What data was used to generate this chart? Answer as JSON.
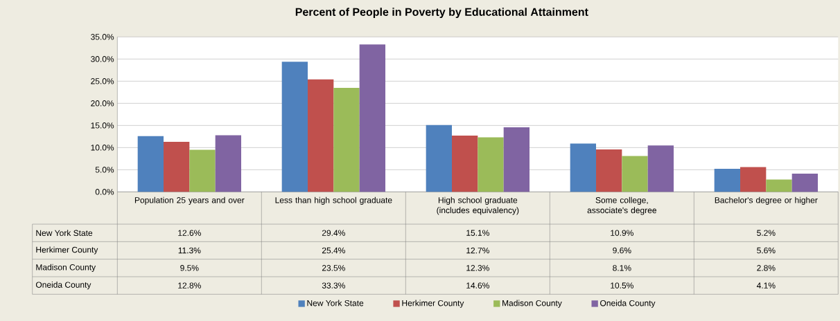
{
  "chart_data": {
    "type": "bar",
    "title": "Percent of People in Poverty by Educational Attainment",
    "categories": [
      "Population 25 years and over",
      "Less than high school graduate",
      "High school graduate (includes equivalency)",
      "Some college, associate's degree",
      "Bachelor's degree or higher"
    ],
    "series": [
      {
        "name": "New York State",
        "color": "#4f81bd",
        "values": [
          12.6,
          29.4,
          15.1,
          10.9,
          5.2
        ],
        "value_labels": [
          "12.6%",
          "29.4%",
          "15.1%",
          "10.9%",
          "5.2%"
        ]
      },
      {
        "name": "Herkimer County",
        "color": "#c0504d",
        "values": [
          11.3,
          25.4,
          12.7,
          9.6,
          5.6
        ],
        "value_labels": [
          "11.3%",
          "25.4%",
          "12.7%",
          "9.6%",
          "5.6%"
        ]
      },
      {
        "name": "Madison County",
        "color": "#9bbb59",
        "values": [
          9.5,
          23.5,
          12.3,
          8.1,
          2.8
        ],
        "value_labels": [
          "9.5%",
          "23.5%",
          "12.3%",
          "8.1%",
          "2.8%"
        ]
      },
      {
        "name": "Oneida County",
        "color": "#8064a2",
        "values": [
          12.8,
          33.3,
          14.6,
          10.5,
          4.1
        ],
        "value_labels": [
          "12.8%",
          "33.3%",
          "14.6%",
          "10.5%",
          "4.1%"
        ]
      }
    ],
    "ylim": [
      0,
      35
    ],
    "yticks": [
      {
        "value": 0,
        "label": "0.0%"
      },
      {
        "value": 5,
        "label": "5.0%"
      },
      {
        "value": 10,
        "label": "10.0%"
      },
      {
        "value": 15,
        "label": "15.0%"
      },
      {
        "value": 20,
        "label": "20.0%"
      },
      {
        "value": 25,
        "label": "25.0%"
      },
      {
        "value": 30,
        "label": "30.0%"
      },
      {
        "value": 35,
        "label": "35.0%"
      }
    ],
    "grid": "y",
    "legend": "bottom"
  }
}
